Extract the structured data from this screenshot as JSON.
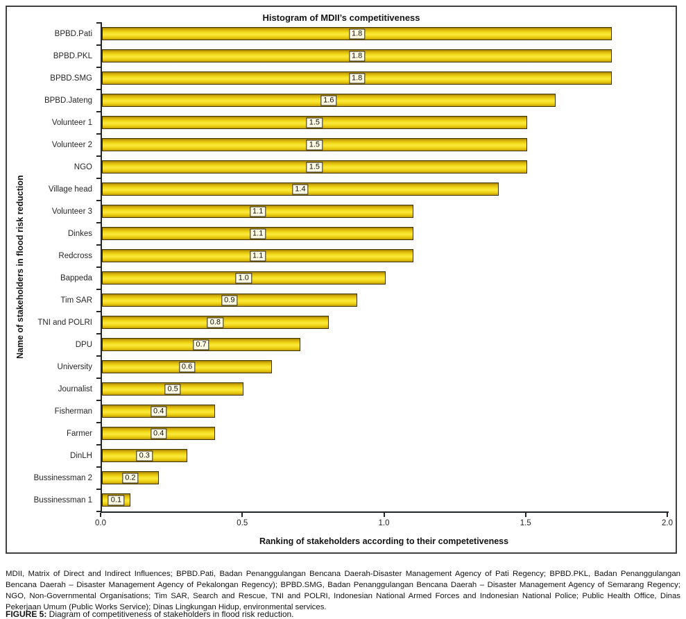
{
  "figure": {
    "title": "Histogram of MDII’s competitiveness",
    "xlabel": "Ranking of stakeholders according to their competetiveness",
    "ylabel": "Name of stakeholders in flood risk reduction",
    "footnote": "MDII, Matrix of Direct and Indirect Influences; BPBD.Pati, Badan Penanggulangan Bencana Daerah-Disaster Management Agency of Pati Regency; BPBD.PKL, Badan Penanggulangan Bencana Daerah – Disaster Management Agency of Pekalongan Regency); BPBD.SMG, Badan Penanggulangan Bencana Daerah – Disaster Management Agency of Semarang Regency; NGO, Non-Governmental Organisations; Tim SAR, Search and Rescue, TNI and POLRI, Indonesian National Armed Forces and Indonesian National Police; Public Health Office, Dinas Pekerjaan Umum (Public Works Service); Dinas Lingkungan Hidup, environmental services.",
    "caption_label": "FIGURE 5:",
    "caption_text": " Diagram of competitiveness of stakeholders in flood risk reduction."
  },
  "chart_data": {
    "type": "bar",
    "orientation": "horizontal",
    "title": "Histogram of MDII’s competitiveness",
    "xlabel": "Ranking of stakeholders according to their competetiveness",
    "ylabel": "Name of stakeholders in flood risk reduction",
    "categories": [
      "BPBD.Pati",
      "BPBD.PKL",
      "BPBD.SMG",
      "BPBD.Jateng",
      "Volunteer 1",
      "Volunteer 2",
      "NGO",
      "Village head",
      "Volunteer 3",
      "Dinkes",
      "Redcross",
      "Bappeda",
      "Tim SAR",
      "TNI and POLRI",
      "DPU",
      "University",
      "Journalist",
      "Fisherman",
      "Farmer",
      "DinLH",
      "Bussinessman 2",
      "Bussinessman 1"
    ],
    "values": [
      1.8,
      1.8,
      1.8,
      1.6,
      1.5,
      1.5,
      1.5,
      1.4,
      1.1,
      1.1,
      1.1,
      1.0,
      0.9,
      0.8,
      0.7,
      0.6,
      0.5,
      0.4,
      0.4,
      0.3,
      0.2,
      0.1
    ],
    "xlim": [
      0.0,
      2.0
    ],
    "xticks": [
      "0.0",
      "0.5",
      "1.0",
      "1.5",
      "2.0"
    ],
    "grid": false,
    "legend": false,
    "data_labels": true,
    "colors": {
      "bar_fill": "#f5d81a",
      "bar_border": "#3c2f00",
      "value_label_bg": "#fffbe3",
      "axis": "#22252a"
    }
  }
}
